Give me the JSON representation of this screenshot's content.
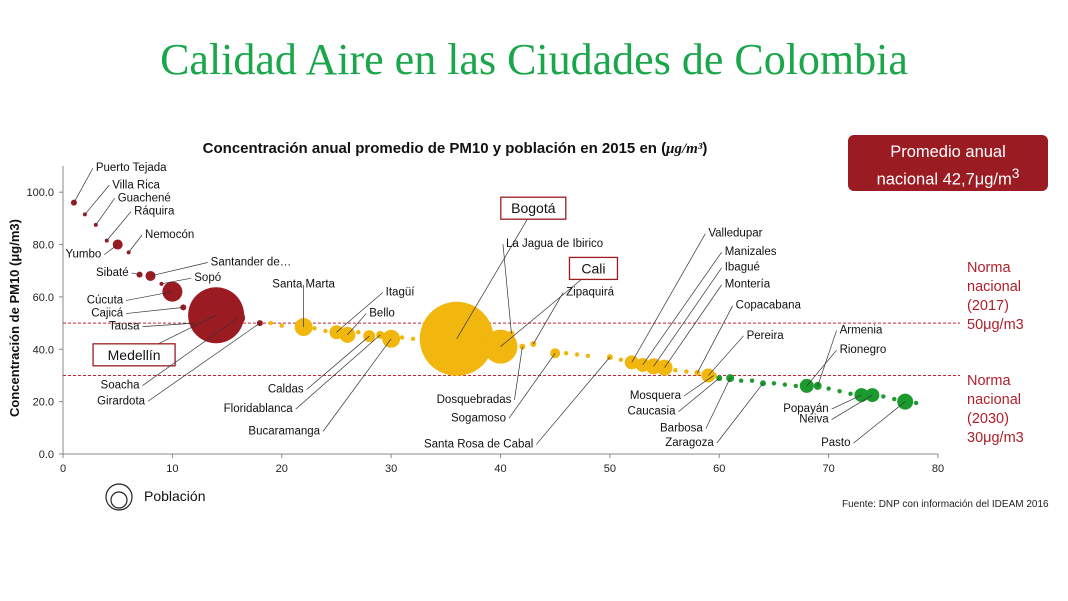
{
  "slide": {
    "title": "Calidad Aire en las Ciudades de Colombia"
  },
  "badge": {
    "line1": "Promedio anual",
    "line2_prefix": "nacional 42,7μg/m",
    "line2_sup": "3"
  },
  "norms": [
    {
      "lines": [
        "Norma",
        "nacional",
        "(2017)",
        "50μg/m3"
      ],
      "value": 50
    },
    {
      "lines": [
        "Norma",
        "nacional",
        "(2030)",
        "30μg/m3"
      ],
      "value": 30
    }
  ],
  "legend": {
    "label": "Población"
  },
  "source": "Fuente: DNP con información del IDEAM 2016",
  "colors": {
    "red": "#9b1b23",
    "yellow": "#f1b70e",
    "green": "#1b9a2e",
    "norm_line": "#c0262e",
    "title_green": "#1aa64a"
  },
  "chart_data": {
    "type": "scatter",
    "title_text": "Concentración anual promedio de PM10 y población en 2015 en (",
    "title_unit": "μg/m³",
    "title_end": ")",
    "xlabel": "",
    "ylabel": "Concentración de PM10 (μg/m3)",
    "xlim": [
      0,
      80
    ],
    "ylim": [
      0,
      110
    ],
    "xticks": [
      "0",
      "10",
      "20",
      "30",
      "40",
      "50",
      "60",
      "70",
      "80"
    ],
    "yticks": [
      "0.0",
      "20.0",
      "40.0",
      "60.0",
      "80.0",
      "100.0"
    ],
    "grid": false,
    "legend": "bottom-left",
    "reference_lines": [
      50,
      30
    ],
    "points": [
      {
        "label": "Puerto Tejada",
        "x": 1,
        "y": 96,
        "size": 3,
        "group": "red",
        "lx": 3,
        "ly": 108,
        "anchor": "start"
      },
      {
        "label": "Villa Rica",
        "x": 2,
        "y": 91.5,
        "size": 2,
        "group": "red",
        "lx": 4.5,
        "ly": 101.5,
        "anchor": "start"
      },
      {
        "label": "Guachené",
        "x": 3,
        "y": 87.5,
        "size": 2,
        "group": "red",
        "lx": 5,
        "ly": 96.5,
        "anchor": "start"
      },
      {
        "label": "Ráquira",
        "x": 4,
        "y": 81.5,
        "size": 2,
        "group": "red",
        "lx": 6.5,
        "ly": 91.5,
        "anchor": "start"
      },
      {
        "label": "Nemocón",
        "x": 6,
        "y": 77,
        "size": 2,
        "group": "red",
        "lx": 7.5,
        "ly": 82.5,
        "anchor": "start"
      },
      {
        "label": "Yumbo",
        "x": 5,
        "y": 80,
        "size": 5,
        "group": "red",
        "lx": 3.5,
        "ly": 75,
        "anchor": "end"
      },
      {
        "label": "Sibaté",
        "x": 7,
        "y": 68.5,
        "size": 3,
        "group": "red",
        "lx": 6,
        "ly": 68,
        "anchor": "end"
      },
      {
        "label": "Santander de…",
        "x": 8,
        "y": 68,
        "size": 5,
        "group": "red",
        "lx": 13.5,
        "ly": 72,
        "anchor": "start"
      },
      {
        "label": "Sopó",
        "x": 9,
        "y": 65,
        "size": 2,
        "group": "red",
        "lx": 12,
        "ly": 66,
        "anchor": "start"
      },
      {
        "label": "Cúcuta",
        "x": 10,
        "y": 62,
        "size": 10,
        "group": "red",
        "lx": 5.5,
        "ly": 57.5,
        "anchor": "end"
      },
      {
        "label": "Cajicá",
        "x": 11,
        "y": 56,
        "size": 3,
        "group": "red",
        "lx": 5.5,
        "ly": 52.5,
        "anchor": "end"
      },
      {
        "label": "Tausa",
        "x": 12,
        "y": 50,
        "size": 2,
        "group": "red",
        "lx": 7,
        "ly": 47.5,
        "anchor": "end"
      },
      {
        "label": "Medellín",
        "x": 14,
        "y": 53,
        "size": 28,
        "group": "red",
        "lx": 6.5,
        "ly": 37.5,
        "anchor": "middle",
        "boxed": true
      },
      {
        "label": "Soacha",
        "x": 16,
        "y": 52,
        "size": 7,
        "group": "red",
        "lx": 7,
        "ly": 25,
        "anchor": "end"
      },
      {
        "label": "Girardota",
        "x": 18,
        "y": 50,
        "size": 3,
        "group": "red",
        "lx": 7.5,
        "ly": 19,
        "anchor": "end"
      },
      {
        "label": "Santa Marta",
        "x": 22,
        "y": 48.5,
        "size": 9,
        "group": "yellow",
        "lx": 22,
        "ly": 63.5,
        "anchor": "middle"
      },
      {
        "label": "Itagüí",
        "x": 25,
        "y": 46.5,
        "size": 7,
        "group": "yellow",
        "lx": 29.5,
        "ly": 60.5,
        "anchor": "start"
      },
      {
        "label": "Bello",
        "x": 26,
        "y": 45.5,
        "size": 8,
        "group": "yellow",
        "lx": 28,
        "ly": 52.5,
        "anchor": "start"
      },
      {
        "label": "Caldas",
        "x": 28,
        "y": 45,
        "size": 6,
        "group": "yellow",
        "lx": 22,
        "ly": 23.5,
        "anchor": "end"
      },
      {
        "label": "Floridablanca",
        "x": 29,
        "y": 45.5,
        "size": 4,
        "group": "yellow",
        "lx": 21,
        "ly": 16,
        "anchor": "end"
      },
      {
        "label": "Bucaramanga",
        "x": 30,
        "y": 44,
        "size": 9,
        "group": "yellow",
        "lx": 23.5,
        "ly": 7.5,
        "anchor": "end"
      },
      {
        "label": "Bogotá",
        "x": 36,
        "y": 44,
        "size": 37,
        "group": "yellow",
        "lx": 43,
        "ly": 93.5,
        "anchor": "middle",
        "boxed": true
      },
      {
        "label": "La Jagua de Ibirico",
        "x": 41,
        "y": 46,
        "size": 3,
        "group": "yellow",
        "lx": 40.5,
        "ly": 79,
        "anchor": "start"
      },
      {
        "label": "Dosquebradas",
        "x": 42,
        "y": 41,
        "size": 3,
        "group": "yellow",
        "lx": 41,
        "ly": 19.5,
        "anchor": "end"
      },
      {
        "label": "Cali",
        "x": 40,
        "y": 41,
        "size": 17,
        "group": "yellow",
        "lx": 48.5,
        "ly": 70.5,
        "anchor": "middle",
        "boxed": true
      },
      {
        "label": "Zipaquirá",
        "x": 43,
        "y": 42,
        "size": 3,
        "group": "yellow",
        "lx": 46,
        "ly": 60.5,
        "anchor": "start"
      },
      {
        "label": "Sogamoso",
        "x": 45,
        "y": 38.5,
        "size": 5,
        "group": "yellow",
        "lx": 40.5,
        "ly": 12.5,
        "anchor": "end"
      },
      {
        "label": "Santa Rosa de Cabal",
        "x": 50,
        "y": 37,
        "size": 3,
        "group": "yellow",
        "lx": 43,
        "ly": 2.5,
        "anchor": "end"
      },
      {
        "label": "Valledupar",
        "x": 52,
        "y": 35,
        "size": 7,
        "group": "yellow",
        "lx": 59,
        "ly": 83,
        "anchor": "start"
      },
      {
        "label": "Manizales",
        "x": 53,
        "y": 34,
        "size": 7,
        "group": "yellow",
        "lx": 60.5,
        "ly": 76,
        "anchor": "start"
      },
      {
        "label": "Ibagué",
        "x": 54,
        "y": 33.5,
        "size": 8,
        "group": "yellow",
        "lx": 60.5,
        "ly": 70,
        "anchor": "start"
      },
      {
        "label": "Montería",
        "x": 55,
        "y": 33,
        "size": 8,
        "group": "yellow",
        "lx": 60.5,
        "ly": 63.5,
        "anchor": "start"
      },
      {
        "label": "Copacabana",
        "x": 58,
        "y": 31,
        "size": 3,
        "group": "yellow",
        "lx": 61.5,
        "ly": 55.5,
        "anchor": "start"
      },
      {
        "label": "Pereira",
        "x": 59,
        "y": 30,
        "size": 7,
        "group": "yellow",
        "lx": 62.5,
        "ly": 44,
        "anchor": "start"
      },
      {
        "label": "Mosquera",
        "x": 59.5,
        "y": 30,
        "size": 3,
        "group": "yellow",
        "lx": 56.5,
        "ly": 21,
        "anchor": "end"
      },
      {
        "label": "Caucasia",
        "x": 60,
        "y": 29,
        "size": 3,
        "group": "green",
        "lx": 56,
        "ly": 15,
        "anchor": "end"
      },
      {
        "label": "Barbosa",
        "x": 61,
        "y": 29,
        "size": 4,
        "group": "green",
        "lx": 58.5,
        "ly": 8.5,
        "anchor": "end"
      },
      {
        "label": "Zaragoza",
        "x": 64,
        "y": 27,
        "size": 3,
        "group": "green",
        "lx": 59.5,
        "ly": 3,
        "anchor": "end"
      },
      {
        "label": "Armenia",
        "x": 69,
        "y": 26,
        "size": 4,
        "group": "green",
        "lx": 71,
        "ly": 46,
        "anchor": "start"
      },
      {
        "label": "Rionegro",
        "x": 68,
        "y": 26,
        "size": 7,
        "group": "green",
        "lx": 71,
        "ly": 38.5,
        "anchor": "start"
      },
      {
        "label": "Popayán",
        "x": 73,
        "y": 22.5,
        "size": 7,
        "group": "green",
        "lx": 70,
        "ly": 16,
        "anchor": "end"
      },
      {
        "label": "Neiva",
        "x": 74,
        "y": 22.5,
        "size": 7,
        "group": "green",
        "lx": 70,
        "ly": 12,
        "anchor": "end"
      },
      {
        "label": "Pasto",
        "x": 77,
        "y": 20,
        "size": 8,
        "group": "green",
        "lx": 72,
        "ly": 3,
        "anchor": "end"
      }
    ],
    "small_dots": [
      {
        "x": 19,
        "y": 50,
        "group": "yellow"
      },
      {
        "x": 20,
        "y": 49,
        "group": "yellow"
      },
      {
        "x": 23,
        "y": 48,
        "group": "yellow"
      },
      {
        "x": 24,
        "y": 47,
        "group": "yellow"
      },
      {
        "x": 27,
        "y": 46.5,
        "group": "yellow"
      },
      {
        "x": 31,
        "y": 44.5,
        "group": "yellow"
      },
      {
        "x": 32,
        "y": 44,
        "group": "yellow"
      },
      {
        "x": 46,
        "y": 38.5,
        "group": "yellow"
      },
      {
        "x": 47,
        "y": 38,
        "group": "yellow"
      },
      {
        "x": 48,
        "y": 37.5,
        "group": "yellow"
      },
      {
        "x": 51,
        "y": 36,
        "group": "yellow"
      },
      {
        "x": 56,
        "y": 32,
        "group": "yellow"
      },
      {
        "x": 57,
        "y": 31.5,
        "group": "yellow"
      },
      {
        "x": 62,
        "y": 28,
        "group": "green"
      },
      {
        "x": 63,
        "y": 28,
        "group": "green"
      },
      {
        "x": 65,
        "y": 27,
        "group": "green"
      },
      {
        "x": 66,
        "y": 26.5,
        "group": "green"
      },
      {
        "x": 67,
        "y": 26,
        "group": "green"
      },
      {
        "x": 70,
        "y": 25,
        "group": "green"
      },
      {
        "x": 71,
        "y": 24,
        "group": "green"
      },
      {
        "x": 72,
        "y": 23,
        "group": "green"
      },
      {
        "x": 75,
        "y": 22,
        "group": "green"
      },
      {
        "x": 76,
        "y": 21,
        "group": "green"
      },
      {
        "x": 78,
        "y": 19.5,
        "group": "green"
      }
    ]
  }
}
